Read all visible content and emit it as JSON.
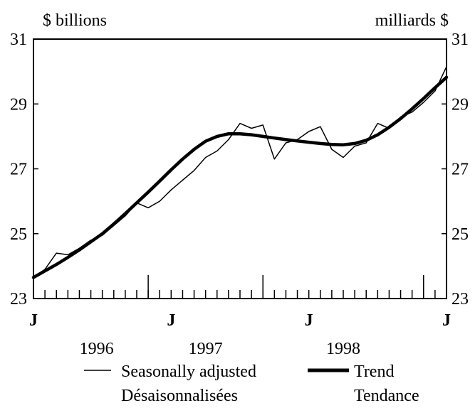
{
  "chart_data": {
    "type": "line",
    "ylabel_left": "$ billions",
    "ylabel_right": "milliards $",
    "ylim": [
      23,
      31
    ],
    "yticks": [
      23,
      25,
      27,
      29,
      31
    ],
    "yticks_labels": [
      "23",
      "25",
      "27",
      "29",
      "31"
    ],
    "x_unit": "month index (0 = Jan 1996)",
    "xlim": [
      0,
      36
    ],
    "x_major_ticks": [
      0,
      12,
      24,
      36
    ],
    "x_major_labels": [
      "J",
      "J",
      "J",
      "J"
    ],
    "x_tall_ticks": [
      10,
      20,
      34
    ],
    "year_labels": [
      {
        "x": 5.5,
        "label": "1996"
      },
      {
        "x": 15,
        "label": "1997"
      },
      {
        "x": 27,
        "label": "1998"
      }
    ],
    "series": [
      {
        "name": "Seasonally adjusted",
        "name_fr": "Désaisonnalisées",
        "style": "thin",
        "x": [
          0,
          1,
          2,
          3,
          4,
          5,
          6,
          7,
          8,
          9,
          10,
          11,
          12,
          13,
          14,
          15,
          16,
          17,
          18,
          19,
          20,
          21,
          22,
          23,
          24,
          25,
          26,
          27,
          28,
          29,
          30,
          31,
          32,
          33,
          34,
          35,
          36
        ],
        "values": [
          23.65,
          23.9,
          24.4,
          24.35,
          24.55,
          24.8,
          24.95,
          25.25,
          25.55,
          25.95,
          25.8,
          26.0,
          26.35,
          26.65,
          26.95,
          27.35,
          27.55,
          27.9,
          28.4,
          28.25,
          28.35,
          27.3,
          27.8,
          27.9,
          28.15,
          28.3,
          27.6,
          27.35,
          27.7,
          27.8,
          28.4,
          28.25,
          28.6,
          28.75,
          29.05,
          29.4,
          30.15
        ]
      },
      {
        "name": "Trend",
        "name_fr": "Tendance",
        "style": "thick",
        "x": [
          0,
          1,
          2,
          3,
          4,
          5,
          6,
          7,
          8,
          9,
          10,
          11,
          12,
          13,
          14,
          15,
          16,
          17,
          18,
          19,
          20,
          21,
          22,
          23,
          24,
          25,
          26,
          27,
          28,
          29,
          30,
          31,
          32,
          33,
          34,
          35,
          36
        ],
        "values": [
          23.65,
          23.85,
          24.05,
          24.27,
          24.5,
          24.75,
          25.0,
          25.3,
          25.62,
          25.95,
          26.28,
          26.62,
          26.97,
          27.3,
          27.6,
          27.85,
          28.0,
          28.08,
          28.08,
          28.05,
          28.0,
          27.95,
          27.9,
          27.86,
          27.82,
          27.78,
          27.75,
          27.74,
          27.78,
          27.88,
          28.05,
          28.28,
          28.55,
          28.85,
          29.17,
          29.5,
          29.82
        ]
      }
    ],
    "legend": [
      {
        "line": "thin",
        "label": "Seasonally adjusted",
        "label2": "Désaisonnalisées"
      },
      {
        "line": "thick",
        "label": "Trend",
        "label2": "Tendance"
      }
    ]
  }
}
